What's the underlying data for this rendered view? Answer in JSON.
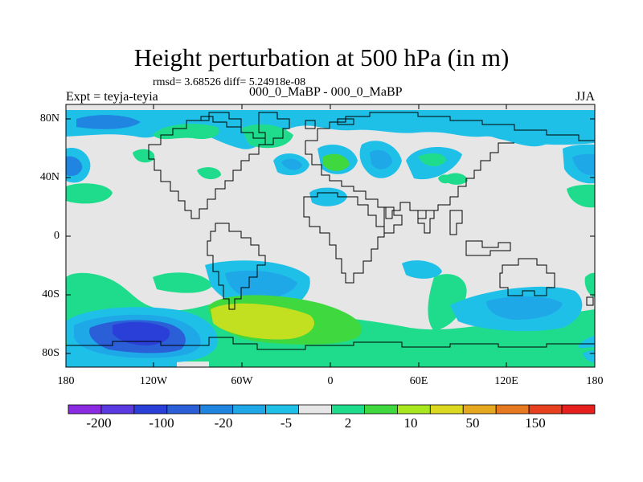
{
  "title": "Height perturbation at 500 hPa (in m)",
  "stats_label": "rmsd= 3.68526 diff= 5.24918e-08",
  "experiment_label": "Expt = teyja-teyia",
  "comparison_label": "000_0_MaBP - 000_0_MaBP",
  "season_label": "JJA",
  "lat_ticks": [
    "80N",
    "40N",
    "0",
    "40S",
    "80S"
  ],
  "lon_ticks": [
    "180",
    "120W",
    "60W",
    "0",
    "60E",
    "120E",
    "180"
  ],
  "colorbar": {
    "labels": [
      "-200",
      "-100",
      "-20",
      "-5",
      "2",
      "10",
      "50",
      "150"
    ],
    "colors": [
      "#8a2be2",
      "#5a3ae0",
      "#2a3fd8",
      "#2a5fd8",
      "#1f85e0",
      "#1fa8e8",
      "#1fc0e8",
      "#e6e6e6",
      "#1fdc8c",
      "#3fd83f",
      "#a8e61f",
      "#dcd81f",
      "#e6a81f",
      "#e6781f",
      "#e6401f",
      "#e61f1f"
    ]
  },
  "field_colors": {
    "neutral": "#e6e6e6",
    "cyan": "#1fc0e8",
    "sky": "#1fa8e8",
    "blue": "#1f85e0",
    "mid_blue": "#2a5fd8",
    "deep_blue": "#2a3fd8",
    "mint": "#1fdc8c",
    "green": "#3fd83f",
    "yellow_green": "#c2e01f"
  }
}
